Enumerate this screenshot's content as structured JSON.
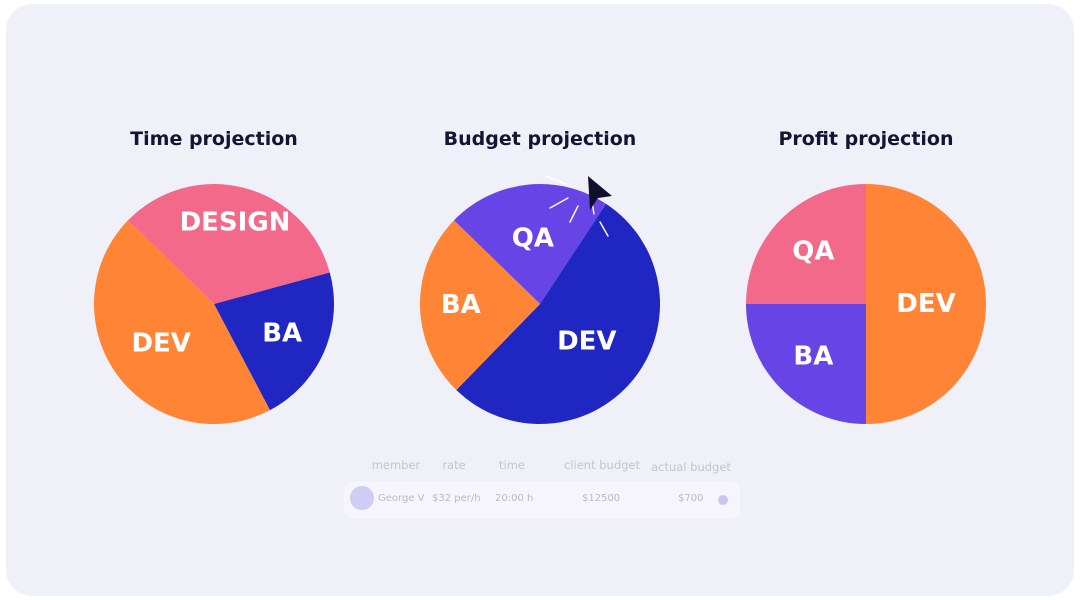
{
  "chart_data": [
    {
      "type": "pie",
      "title": "Time projection",
      "slices": [
        {
          "label": "DESIGN",
          "value": 33.5,
          "color": "#f2698a"
        },
        {
          "label": "BA",
          "value": 21.5,
          "color": "#1f26c2"
        },
        {
          "label": "DEV",
          "value": 45,
          "color": "#ff8436"
        }
      ]
    },
    {
      "type": "pie",
      "title": "Budget projection",
      "slices": [
        {
          "label": "QA",
          "value": 22,
          "color": "#6744e6"
        },
        {
          "label": "DEV",
          "value": 53,
          "color": "#1f26c2"
        },
        {
          "label": "BA",
          "value": 25,
          "color": "#ff8436"
        }
      ]
    },
    {
      "type": "pie",
      "title": "Profit projection",
      "slices": [
        {
          "label": "DEV",
          "value": 50,
          "color": "#ff8436"
        },
        {
          "label": "BA",
          "value": 25,
          "color": "#6744e6"
        },
        {
          "label": "QA",
          "value": 25,
          "color": "#f2698a"
        }
      ]
    }
  ],
  "table": {
    "headers": [
      "member",
      "rate",
      "time",
      "client budget",
      "actual budget"
    ],
    "row": {
      "member": "George V",
      "rate": "$32 per/h",
      "time": "20:00 h",
      "client_budget": "$12500",
      "actual_budget": "$700"
    }
  },
  "icons": {
    "cursor": "arrow-cursor-icon",
    "click": "click-burst-icon"
  }
}
